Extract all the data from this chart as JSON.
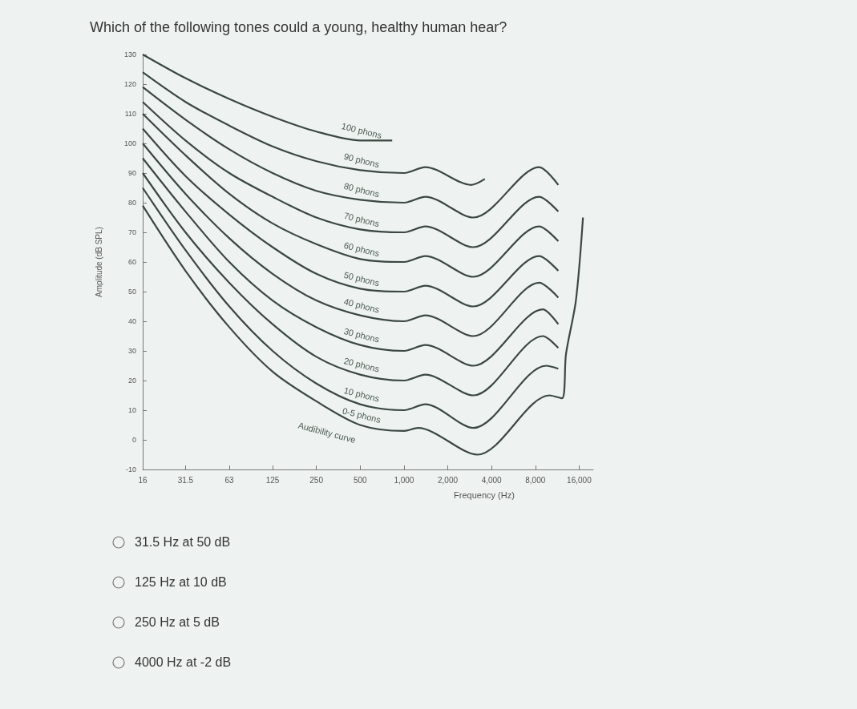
{
  "chart_data": {
    "type": "line",
    "title": "Which of the following tones could a young, healthy human hear?",
    "xlabel": "Frequency (Hz)",
    "ylabel": "Amplitude (dB SPL)",
    "xlim": [
      16,
      20000
    ],
    "xticks": [
      16,
      31.5,
      63,
      125,
      250,
      500,
      {
        "value": 1000,
        "label": "1,000"
      },
      {
        "value": 2000,
        "label": "2,000"
      },
      {
        "value": 4000,
        "label": "4,000"
      },
      {
        "value": 8000,
        "label": "8,000"
      },
      {
        "value": 16000,
        "label": "16,000"
      }
    ],
    "log": "x",
    "ylim": [
      -10,
      130
    ],
    "yticks": [
      -10,
      0,
      10,
      20,
      30,
      40,
      50,
      60,
      70,
      80,
      90,
      100,
      110,
      120,
      130
    ],
    "grid": false,
    "legend": false,
    "series": [
      {
        "name": "100 phons",
        "color": "#3b4740",
        "x": [
          16,
          31.5,
          63,
          125,
          250,
          500,
          830
        ],
        "values": [
          130,
          122,
          115,
          109,
          104,
          101,
          101
        ]
      },
      {
        "name": "90 phons",
        "color": "#3b4740",
        "x": [
          16,
          31.5,
          63,
          125,
          250,
          500,
          1000,
          1400,
          2900,
          3600
        ],
        "values": [
          124,
          114,
          106,
          99,
          94,
          91,
          90,
          92,
          86,
          88
        ]
      },
      {
        "name": "80 phons",
        "color": "#3b4740",
        "x": [
          16,
          31.5,
          63,
          125,
          250,
          500,
          1000,
          1400,
          3000,
          8500,
          11500
        ],
        "values": [
          119,
          108,
          98,
          90,
          84,
          81,
          80,
          82,
          75,
          92,
          86
        ]
      },
      {
        "name": "70 phons",
        "color": "#3b4740",
        "x": [
          16,
          31.5,
          63,
          125,
          250,
          500,
          1000,
          1400,
          3000,
          8500,
          11500
        ],
        "values": [
          114,
          101,
          90,
          82,
          75,
          71,
          70,
          72,
          65,
          82,
          77
        ]
      },
      {
        "name": "60 phons",
        "color": "#3b4740",
        "x": [
          16,
          31.5,
          63,
          125,
          250,
          500,
          1000,
          1400,
          3000,
          8500,
          11500
        ],
        "values": [
          110,
          96,
          83,
          73,
          66,
          61,
          60,
          62,
          55,
          72,
          67
        ]
      },
      {
        "name": "50 phons",
        "color": "#3b4740",
        "x": [
          16,
          31.5,
          63,
          125,
          250,
          500,
          1000,
          1400,
          3000,
          8500,
          11500
        ],
        "values": [
          105,
          89,
          76,
          65,
          56,
          51,
          50,
          52,
          45,
          62,
          57
        ]
      },
      {
        "name": "40 phons",
        "color": "#3b4740",
        "x": [
          16,
          31.5,
          63,
          125,
          250,
          500,
          1000,
          1400,
          3000,
          8500,
          11500
        ],
        "values": [
          100,
          83,
          68,
          56,
          47,
          42,
          40,
          42,
          35,
          53,
          48
        ]
      },
      {
        "name": "30 phons",
        "color": "#3b4740",
        "x": [
          16,
          31.5,
          63,
          125,
          250,
          500,
          1000,
          1400,
          3000,
          9000,
          11500
        ],
        "values": [
          95,
          77,
          60,
          47,
          38,
          32,
          30,
          32,
          25,
          44,
          39
        ]
      },
      {
        "name": "20 phons",
        "color": "#3b4740",
        "x": [
          16,
          31.5,
          63,
          125,
          250,
          500,
          1000,
          1400,
          3000,
          9000,
          11500
        ],
        "values": [
          90,
          70,
          53,
          39,
          28,
          22,
          20,
          22,
          15,
          35,
          31
        ]
      },
      {
        "name": "10 phons",
        "color": "#3b4740",
        "x": [
          16,
          31.5,
          63,
          125,
          250,
          500,
          1000,
          1400,
          3000,
          9500,
          11500
        ],
        "values": [
          85,
          64,
          45,
          30,
          19,
          12,
          10,
          12,
          4,
          25,
          24
        ]
      },
      {
        "name": "0-5 phons",
        "color": "#3b4740",
        "x": [
          16,
          31.5,
          63,
          125,
          250,
          500,
          1000,
          1250,
          3200,
          10000,
          12200,
          13000,
          15200,
          17000
        ],
        "values": [
          79,
          57,
          38,
          23,
          13,
          5,
          3,
          4,
          -5,
          15,
          14,
          29,
          47,
          75
        ]
      }
    ],
    "annotations": [
      "Audibility curve",
      "31.5 Hz at 50 dB",
      "125 Hz at 10 dB",
      "250 Hz at 5 dB",
      "4000 Hz at -2 dB"
    ]
  }
}
